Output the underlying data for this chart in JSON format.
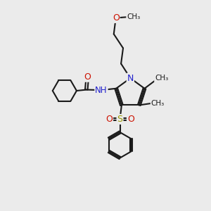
{
  "bg_color": "#ebebeb",
  "bond_color": "#1a1a1a",
  "N_color": "#2020cc",
  "O_color": "#cc1100",
  "S_color": "#999900",
  "lw": 1.5,
  "xlim": [
    0,
    10
  ],
  "ylim": [
    0,
    10
  ]
}
